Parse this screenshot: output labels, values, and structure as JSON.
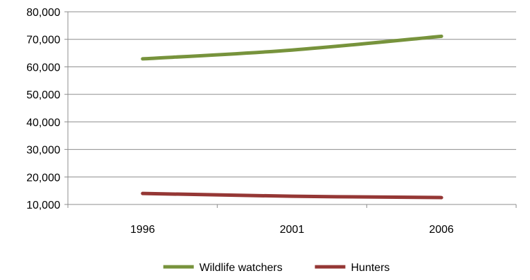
{
  "chart_data": {
    "type": "line",
    "title": "",
    "xlabel": "",
    "ylabel": "",
    "categories": [
      "1996",
      "2001",
      "2006"
    ],
    "ylim": [
      10000,
      80000
    ],
    "yticks": [
      10000,
      20000,
      30000,
      40000,
      50000,
      60000,
      70000,
      80000
    ],
    "ytick_labels": [
      "10,000",
      "20,000",
      "30,000",
      "40,000",
      "50,000",
      "60,000",
      "70,000",
      "80,000"
    ],
    "grid": true,
    "legend_position": "bottom",
    "series": [
      {
        "name": "Wildlife watchers",
        "values": [
          62900,
          66100,
          71100
        ],
        "color": "#77933C"
      },
      {
        "name": "Hunters",
        "values": [
          14000,
          13000,
          12500
        ],
        "color": "#953735"
      }
    ]
  }
}
